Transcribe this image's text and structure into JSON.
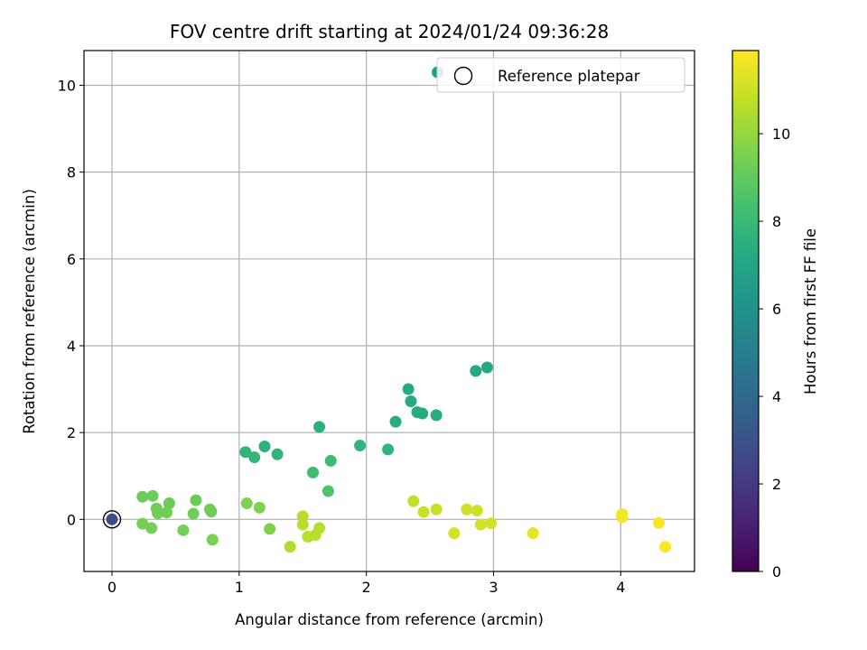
{
  "chart_data": {
    "type": "scatter",
    "title": "FOV centre drift starting at 2024/01/24 09:36:28",
    "xlabel": "Angular distance from reference (arcmin)",
    "ylabel": "Rotation from reference (arcmin)",
    "xlim": [
      -0.22,
      4.58
    ],
    "ylim": [
      -1.2,
      10.8
    ],
    "xticks": [
      "0",
      "1",
      "2",
      "3",
      "4"
    ],
    "yticks": [
      "0",
      "2",
      "4",
      "6",
      "8",
      "10"
    ],
    "grid": true,
    "legend": {
      "position": "top-right",
      "entries": [
        "Reference platepar"
      ]
    },
    "reference_point": {
      "x": 0,
      "y": 0,
      "hours": 2.7
    },
    "colorbar": {
      "label": "Hours from first FF file",
      "range": [
        0,
        11.9
      ],
      "ticks": [
        "0",
        "2",
        "4",
        "6",
        "8",
        "10"
      ],
      "colormap": "viridis"
    },
    "points": [
      {
        "x": 2.56,
        "y": 10.3,
        "hours": 6.6
      },
      {
        "x": 2.95,
        "y": 3.5,
        "hours": 7.2
      },
      {
        "x": 2.86,
        "y": 3.42,
        "hours": 7.2
      },
      {
        "x": 2.33,
        "y": 3.0,
        "hours": 7.3
      },
      {
        "x": 2.35,
        "y": 2.72,
        "hours": 7.3
      },
      {
        "x": 2.4,
        "y": 2.47,
        "hours": 7.3
      },
      {
        "x": 2.44,
        "y": 2.44,
        "hours": 7.3
      },
      {
        "x": 2.55,
        "y": 2.4,
        "hours": 7.3
      },
      {
        "x": 2.23,
        "y": 2.25,
        "hours": 7.4
      },
      {
        "x": 1.63,
        "y": 2.13,
        "hours": 7.5
      },
      {
        "x": 1.95,
        "y": 1.7,
        "hours": 7.7
      },
      {
        "x": 2.17,
        "y": 1.61,
        "hours": 7.7
      },
      {
        "x": 1.2,
        "y": 1.68,
        "hours": 7.6
      },
      {
        "x": 1.05,
        "y": 1.55,
        "hours": 7.7
      },
      {
        "x": 1.3,
        "y": 1.5,
        "hours": 7.7
      },
      {
        "x": 1.12,
        "y": 1.43,
        "hours": 7.8
      },
      {
        "x": 1.72,
        "y": 1.35,
        "hours": 8.1
      },
      {
        "x": 1.58,
        "y": 1.08,
        "hours": 8.2
      },
      {
        "x": 1.7,
        "y": 0.65,
        "hours": 8.6
      },
      {
        "x": 0.24,
        "y": 0.52,
        "hours": 9.2
      },
      {
        "x": 0.32,
        "y": 0.54,
        "hours": 9.2
      },
      {
        "x": 0.66,
        "y": 0.44,
        "hours": 9.2
      },
      {
        "x": 0.45,
        "y": 0.37,
        "hours": 9.2
      },
      {
        "x": 0.35,
        "y": 0.25,
        "hours": 9.3
      },
      {
        "x": 0.77,
        "y": 0.23,
        "hours": 9.3
      },
      {
        "x": 0.36,
        "y": 0.14,
        "hours": 9.3
      },
      {
        "x": 0.43,
        "y": 0.16,
        "hours": 9.3
      },
      {
        "x": 0.64,
        "y": 0.13,
        "hours": 9.3
      },
      {
        "x": 0.78,
        "y": 0.18,
        "hours": 9.3
      },
      {
        "x": 0.24,
        "y": -0.1,
        "hours": 9.4
      },
      {
        "x": 0.31,
        "y": -0.2,
        "hours": 9.4
      },
      {
        "x": 0.56,
        "y": -0.25,
        "hours": 9.4
      },
      {
        "x": 0.79,
        "y": -0.47,
        "hours": 9.5
      },
      {
        "x": 1.06,
        "y": 0.37,
        "hours": 9.6
      },
      {
        "x": 1.16,
        "y": 0.27,
        "hours": 9.6
      },
      {
        "x": 1.24,
        "y": -0.22,
        "hours": 9.6
      },
      {
        "x": 1.4,
        "y": -0.63,
        "hours": 10.5
      },
      {
        "x": 1.5,
        "y": 0.07,
        "hours": 10.6
      },
      {
        "x": 1.5,
        "y": -0.12,
        "hours": 10.6
      },
      {
        "x": 1.63,
        "y": -0.2,
        "hours": 10.6
      },
      {
        "x": 1.6,
        "y": -0.36,
        "hours": 10.6
      },
      {
        "x": 1.54,
        "y": -0.4,
        "hours": 10.6
      },
      {
        "x": 2.37,
        "y": 0.42,
        "hours": 10.8
      },
      {
        "x": 2.45,
        "y": 0.17,
        "hours": 10.9
      },
      {
        "x": 2.55,
        "y": 0.23,
        "hours": 10.9
      },
      {
        "x": 2.79,
        "y": 0.23,
        "hours": 11.0
      },
      {
        "x": 2.87,
        "y": 0.2,
        "hours": 11.0
      },
      {
        "x": 2.69,
        "y": -0.32,
        "hours": 11.1
      },
      {
        "x": 2.9,
        "y": -0.12,
        "hours": 11.1
      },
      {
        "x": 2.98,
        "y": -0.09,
        "hours": 11.1
      },
      {
        "x": 3.31,
        "y": -0.32,
        "hours": 11.4
      },
      {
        "x": 4.01,
        "y": 0.12,
        "hours": 11.7
      },
      {
        "x": 4.01,
        "y": 0.05,
        "hours": 11.7
      },
      {
        "x": 4.3,
        "y": -0.08,
        "hours": 11.8
      },
      {
        "x": 4.35,
        "y": -0.63,
        "hours": 11.9
      }
    ]
  }
}
